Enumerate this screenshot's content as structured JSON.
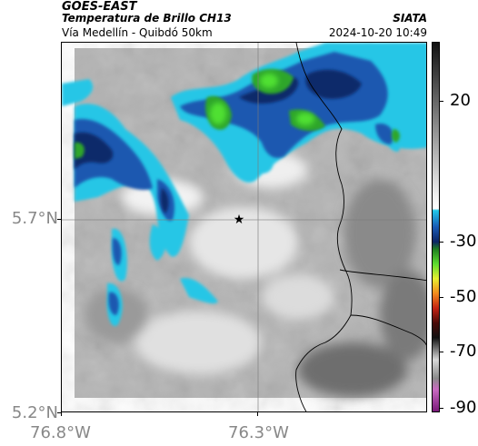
{
  "header": {
    "satellite": "GOES-EAST",
    "product": "Temperatura de Brillo CH13",
    "organization": "SIATA",
    "region": "Vía Medellín - Quibdó 50km",
    "datetime": "2024-10-20 10:49"
  },
  "axes": {
    "y_ticks": [
      "5.7°N",
      "5.2°N"
    ],
    "x_ticks": [
      "76.8°W",
      "76.3°W"
    ]
  },
  "colorbar": {
    "labels": [
      "20",
      "-30",
      "-50",
      "-70",
      "-90"
    ]
  },
  "colors": {
    "cloud_cyan": "#27c6e6",
    "cloud_blue": "#1b58b0",
    "cloud_navy": "#0d2a6a",
    "cloud_green": "#2fa62b",
    "cloud_lime": "#4fe033",
    "background_gray": "#a8a8a8"
  },
  "marker": {
    "symbol": "★"
  }
}
